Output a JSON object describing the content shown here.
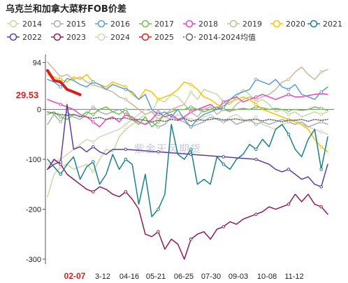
{
  "chart_data": {
    "type": "line",
    "title": "乌克兰和加拿大菜籽FOB价差",
    "xlabel": "",
    "ylabel": "",
    "ylim": [
      -310,
      110
    ],
    "y_ticks": [
      94,
      0,
      -100,
      -200,
      -300
    ],
    "y_highlight": {
      "label": "29.53",
      "value": 29.53
    },
    "x_tick_labels": [
      "02-07",
      "3-12",
      "04-16",
      "05-21",
      "06-25",
      "07-30",
      "09-03",
      "10-08",
      "11-12"
    ],
    "legend_position": "top",
    "grid": false,
    "watermark": "紫金天风期货",
    "series": [
      {
        "name": "2014",
        "color": "#c8d8a0",
        "style": "solid",
        "values": [
          -175,
          -130,
          -115,
          -110,
          -120,
          -115,
          -110,
          -125,
          -100,
          -80,
          -85,
          -55,
          -40,
          -30,
          -20,
          -10,
          -5,
          20,
          15,
          30,
          25,
          10,
          35,
          20,
          40,
          35,
          30,
          15,
          10,
          25,
          40,
          30,
          15,
          20,
          10,
          -5,
          0,
          -10,
          -5,
          -15,
          -10,
          -5,
          -10,
          -5
        ]
      },
      {
        "name": "2015",
        "color": "#a9adb4",
        "style": "solid",
        "values": [
          -30,
          -10,
          -25,
          -5,
          -15,
          -20,
          -10,
          5,
          -5,
          -10,
          -5,
          0,
          -10,
          -20,
          -25,
          -30,
          -25,
          -35,
          -30,
          -15,
          -20,
          -25,
          -35,
          -30,
          -25,
          -15,
          -20,
          -25,
          -20,
          -30,
          -25,
          -20,
          -30,
          -25,
          -30,
          -25,
          -20,
          -25,
          -30,
          -25,
          -35,
          -30,
          -25,
          -30
        ]
      },
      {
        "name": "2016",
        "color": "#5b9bd5",
        "style": "solid",
        "values": [
          60,
          55,
          45,
          62,
          58,
          50,
          45,
          55,
          50,
          40,
          50,
          45,
          40,
          35,
          20,
          30,
          0,
          -10,
          -5,
          -15,
          0,
          -20,
          -35,
          -20,
          -10,
          -5,
          0,
          5,
          20,
          30,
          35,
          40,
          60,
          55,
          50,
          60,
          45,
          40,
          50,
          30,
          25,
          20,
          35,
          45
        ]
      },
      {
        "name": "2017",
        "color": "#70c050",
        "style": "solid",
        "values": [
          -10,
          -5,
          -15,
          -20,
          -10,
          -15,
          -5,
          -10,
          0,
          5,
          -5,
          -10,
          0,
          -20,
          -30,
          -15,
          -35,
          -25,
          -10,
          -5,
          0,
          0,
          5,
          0,
          -5,
          0,
          5,
          0,
          -3,
          0,
          2,
          0,
          5,
          3,
          0,
          2,
          0,
          -2,
          0,
          -2,
          0,
          5,
          2,
          -2
        ]
      },
      {
        "name": "2018",
        "color": "#ee44bb",
        "style": "solid",
        "values": [
          20,
          15,
          10,
          5,
          0,
          -10,
          -15,
          -25,
          -35,
          -20,
          -15,
          -25,
          -10,
          -15,
          -25,
          -30,
          -20,
          -5,
          -15,
          -10,
          -20,
          -15,
          -5,
          0,
          5,
          10,
          0,
          15,
          20,
          25,
          15,
          20,
          25,
          30,
          25,
          20,
          25,
          30,
          25,
          25,
          28,
          30,
          32,
          30
        ]
      },
      {
        "name": "2019",
        "color": "#c9b89a",
        "style": "solid",
        "values": [
          95,
          80,
          65,
          70,
          60,
          65,
          55,
          50,
          45,
          40,
          35,
          25,
          20,
          10,
          0,
          -10,
          -5,
          -20,
          -10,
          0,
          5,
          10,
          -5,
          -15,
          0,
          5,
          -10,
          0,
          -5,
          10,
          20,
          25,
          20,
          25,
          30,
          40,
          55,
          60,
          75,
          85,
          70,
          60,
          75,
          80
        ]
      },
      {
        "name": "2020",
        "color": "#f5c400",
        "style": "solid",
        "values": [
          70,
          65,
          60,
          55,
          65,
          60,
          70,
          55,
          50,
          45,
          55,
          50,
          45,
          30,
          20,
          40,
          35,
          20,
          25,
          30,
          40,
          55,
          50,
          40,
          25,
          20,
          10,
          5,
          15,
          20,
          25,
          20,
          10,
          0,
          -5,
          -10,
          -15,
          -20,
          -25,
          -30,
          -40,
          -60,
          -75,
          -85
        ]
      },
      {
        "name": "2021",
        "color": "#1a7f8e",
        "style": "solid",
        "values": [
          -100,
          -115,
          -130,
          -110,
          -95,
          -140,
          -115,
          -105,
          -150,
          -130,
          -90,
          -120,
          -100,
          -110,
          -190,
          -130,
          -215,
          -200,
          -170,
          -30,
          -90,
          -100,
          -80,
          -150,
          -140,
          -150,
          -95,
          -110,
          -120,
          -100,
          -90,
          -70,
          -80,
          -60,
          -75,
          -40,
          -30,
          -50,
          -80,
          -95,
          -60,
          -40,
          -120,
          -55
        ]
      },
      {
        "name": "2022",
        "color": "#5a3e9e",
        "style": "solid",
        "values": [
          -120,
          -110,
          -105,
          10,
          -80,
          -75,
          -85,
          -75,
          -85,
          -90,
          -80,
          -80,
          -80,
          -81,
          -82,
          -83,
          -84,
          -85,
          -86,
          -87,
          -88,
          -89,
          -90,
          -91,
          -92,
          -93,
          -94,
          -95,
          -96,
          -97,
          -98,
          -99,
          -100,
          -105,
          -110,
          -120,
          -125,
          -120,
          -130,
          -140,
          -135,
          -150,
          -155,
          -110
        ]
      },
      {
        "name": "2023",
        "color": "#8e1a5e",
        "style": "solid",
        "values": [
          -120,
          -100,
          -110,
          -130,
          -140,
          -150,
          -160,
          -165,
          -155,
          -160,
          -170,
          -175,
          -165,
          -180,
          -200,
          -250,
          -255,
          -245,
          -280,
          -260,
          -270,
          -300,
          -260,
          -250,
          -245,
          -260,
          -240,
          -235,
          -225,
          -230,
          -220,
          -215,
          -210,
          -205,
          -195,
          -200,
          -195,
          -190,
          -170,
          -185,
          -170,
          -190,
          -195,
          -210
        ]
      },
      {
        "name": "2024",
        "color": "#d8d2c0",
        "style": "solid",
        "values": [
          -110,
          -105,
          -100,
          -90,
          -80,
          -70,
          -60,
          -65,
          -55,
          -50,
          -45,
          -40,
          -30,
          -20,
          -10,
          0,
          -5,
          -10,
          -15,
          -20,
          -10,
          -15,
          -20,
          -25,
          -15,
          -10,
          -20,
          -25,
          -15,
          -10,
          -20,
          -25,
          -15,
          -30,
          -35,
          -40,
          -30,
          -25,
          -20,
          -30,
          -35,
          -40,
          -45,
          -50
        ]
      },
      {
        "name": "2025",
        "color": "#d42020",
        "style": "bold",
        "values": [
          78,
          58,
          55,
          40,
          35,
          29.53
        ]
      },
      {
        "name": "2014-2024均值",
        "color": "#666666",
        "style": "dotted",
        "values": [
          -5,
          -8,
          -10,
          -12,
          -10,
          -14,
          -15,
          -18,
          -16,
          -20,
          -18,
          -19,
          -17,
          -21,
          -20,
          -22,
          -25,
          -22,
          -24,
          -20,
          -22,
          -18,
          -24,
          -20,
          -22,
          -20,
          -18,
          -21,
          -20,
          -19,
          -22,
          -21,
          -20,
          -23,
          -20,
          -22,
          -25,
          -21,
          -22,
          -20,
          -24,
          -20,
          -22,
          -20
        ]
      }
    ]
  }
}
